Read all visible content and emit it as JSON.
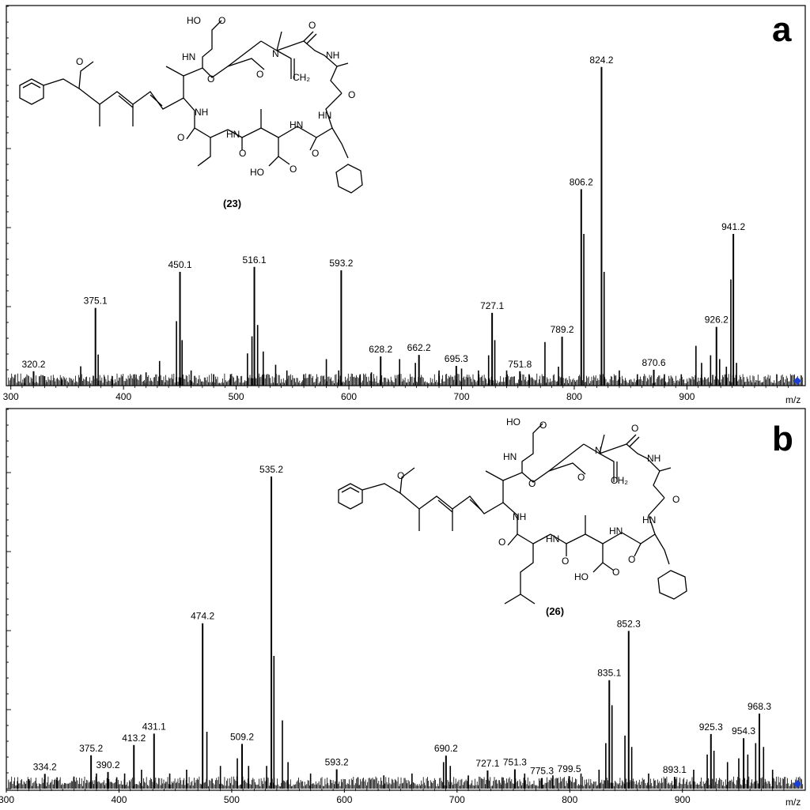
{
  "chart_data": [
    {
      "type": "bar",
      "panel": "a",
      "compound": "(23)",
      "xlabel": "m/z",
      "xlim": [
        296,
        1005
      ],
      "ylim": [
        0,
        100
      ],
      "xticks": [
        300,
        400,
        500,
        600,
        700,
        800,
        900
      ],
      "peaks": [
        {
          "mz": 320.2,
          "rel": 3.8
        },
        {
          "mz": 375.1,
          "rel": 20.5
        },
        {
          "mz": 450.1,
          "rel": 30
        },
        {
          "mz": 516.1,
          "rel": 31.3
        },
        {
          "mz": 593.2,
          "rel": 30.4
        },
        {
          "mz": 628.2,
          "rel": 7.7
        },
        {
          "mz": 662.2,
          "rel": 8.1
        },
        {
          "mz": 695.3,
          "rel": 5.2
        },
        {
          "mz": 727.1,
          "rel": 19.2
        },
        {
          "mz": 751.8,
          "rel": 3.8
        },
        {
          "mz": 789.2,
          "rel": 12.9
        },
        {
          "mz": 806.2,
          "rel": 51.8
        },
        {
          "mz": 824.2,
          "rel": 84
        },
        {
          "mz": 870.6,
          "rel": 4.2
        },
        {
          "mz": 926.2,
          "rel": 15.5
        },
        {
          "mz": 941.2,
          "rel": 40
        }
      ],
      "minor_peaks": [
        {
          "mz": 312,
          "rel": 2
        },
        {
          "mz": 330,
          "rel": 2.5
        },
        {
          "mz": 345,
          "rel": 1.8
        },
        {
          "mz": 362,
          "rel": 5.1
        },
        {
          "mz": 377.5,
          "rel": 8.2
        },
        {
          "mz": 390,
          "rel": 2.5
        },
        {
          "mz": 410,
          "rel": 3
        },
        {
          "mz": 420,
          "rel": 3.5
        },
        {
          "mz": 432,
          "rel": 6.5
        },
        {
          "mz": 447,
          "rel": 17
        },
        {
          "mz": 452,
          "rel": 12
        },
        {
          "mz": 460,
          "rel": 4
        },
        {
          "mz": 480,
          "rel": 3
        },
        {
          "mz": 495,
          "rel": 3
        },
        {
          "mz": 510,
          "rel": 8.5
        },
        {
          "mz": 514,
          "rel": 13
        },
        {
          "mz": 519,
          "rel": 16
        },
        {
          "mz": 524,
          "rel": 9
        },
        {
          "mz": 535,
          "rel": 5.5
        },
        {
          "mz": 545,
          "rel": 4
        },
        {
          "mz": 560,
          "rel": 3
        },
        {
          "mz": 580,
          "rel": 7
        },
        {
          "mz": 591,
          "rel": 4
        },
        {
          "mz": 610,
          "rel": 3
        },
        {
          "mz": 620,
          "rel": 3.5
        },
        {
          "mz": 645,
          "rel": 7
        },
        {
          "mz": 659,
          "rel": 6
        },
        {
          "mz": 680,
          "rel": 4
        },
        {
          "mz": 700,
          "rel": 4.5
        },
        {
          "mz": 715,
          "rel": 4
        },
        {
          "mz": 724,
          "rel": 8
        },
        {
          "mz": 729.5,
          "rel": 12
        },
        {
          "mz": 740,
          "rel": 4
        },
        {
          "mz": 760,
          "rel": 3
        },
        {
          "mz": 774,
          "rel": 11.5
        },
        {
          "mz": 786,
          "rel": 5
        },
        {
          "mz": 808.5,
          "rel": 40
        },
        {
          "mz": 826.5,
          "rel": 30
        },
        {
          "mz": 840,
          "rel": 4
        },
        {
          "mz": 856,
          "rel": 3
        },
        {
          "mz": 880,
          "rel": 3
        },
        {
          "mz": 895,
          "rel": 3
        },
        {
          "mz": 908,
          "rel": 10.5
        },
        {
          "mz": 913,
          "rel": 6
        },
        {
          "mz": 921,
          "rel": 8
        },
        {
          "mz": 929,
          "rel": 7
        },
        {
          "mz": 935,
          "rel": 5
        },
        {
          "mz": 939,
          "rel": 28
        },
        {
          "mz": 944,
          "rel": 6
        }
      ]
    },
    {
      "type": "bar",
      "panel": "b",
      "compound": "(26)",
      "xlabel": "m/z",
      "xlim": [
        300,
        1009
      ],
      "ylim": [
        0,
        100
      ],
      "xticks": [
        300,
        400,
        500,
        600,
        700,
        800,
        900
      ],
      "peaks": [
        {
          "mz": 334.2,
          "rel": 3.9
        },
        {
          "mz": 375.2,
          "rel": 8.8
        },
        {
          "mz": 390.2,
          "rel": 4.4
        },
        {
          "mz": 413.2,
          "rel": 11.5
        },
        {
          "mz": 431.1,
          "rel": 14.5
        },
        {
          "mz": 474.2,
          "rel": 43.6
        },
        {
          "mz": 509.2,
          "rel": 11.8
        },
        {
          "mz": 535.2,
          "rel": 82.3
        },
        {
          "mz": 593.2,
          "rel": 5.1
        },
        {
          "mz": 690.2,
          "rel": 8.7
        },
        {
          "mz": 727.1,
          "rel": 4.8
        },
        {
          "mz": 751.3,
          "rel": 5.1
        },
        {
          "mz": 775.3,
          "rel": 2.8
        },
        {
          "mz": 799.5,
          "rel": 3.3
        },
        {
          "mz": 835.1,
          "rel": 28.6
        },
        {
          "mz": 852.3,
          "rel": 41.6
        },
        {
          "mz": 893.1,
          "rel": 3.1
        },
        {
          "mz": 925.3,
          "rel": 14.4
        },
        {
          "mz": 954.3,
          "rel": 13.3
        },
        {
          "mz": 968.3,
          "rel": 19.8
        }
      ],
      "minor_peaks": [
        {
          "mz": 310,
          "rel": 2
        },
        {
          "mz": 320,
          "rel": 2.5
        },
        {
          "mz": 345,
          "rel": 3
        },
        {
          "mz": 360,
          "rel": 3.2
        },
        {
          "mz": 380,
          "rel": 4
        },
        {
          "mz": 398,
          "rel": 3
        },
        {
          "mz": 405,
          "rel": 4
        },
        {
          "mz": 420,
          "rel": 5
        },
        {
          "mz": 445,
          "rel": 4
        },
        {
          "mz": 460,
          "rel": 5
        },
        {
          "mz": 478,
          "rel": 15
        },
        {
          "mz": 490,
          "rel": 6
        },
        {
          "mz": 505,
          "rel": 8
        },
        {
          "mz": 515,
          "rel": 6
        },
        {
          "mz": 531,
          "rel": 6
        },
        {
          "mz": 537.5,
          "rel": 35
        },
        {
          "mz": 545,
          "rel": 18
        },
        {
          "mz": 550,
          "rel": 7
        },
        {
          "mz": 570,
          "rel": 4
        },
        {
          "mz": 612,
          "rel": 3
        },
        {
          "mz": 635,
          "rel": 3.5
        },
        {
          "mz": 660,
          "rel": 4
        },
        {
          "mz": 688,
          "rel": 7
        },
        {
          "mz": 694,
          "rel": 6
        },
        {
          "mz": 710,
          "rel": 3.5
        },
        {
          "mz": 740,
          "rel": 3
        },
        {
          "mz": 760,
          "rel": 4
        },
        {
          "mz": 785,
          "rel": 3.5
        },
        {
          "mz": 810,
          "rel": 4
        },
        {
          "mz": 826,
          "rel": 5
        },
        {
          "mz": 832,
          "rel": 12
        },
        {
          "mz": 837.5,
          "rel": 22
        },
        {
          "mz": 849,
          "rel": 14
        },
        {
          "mz": 855,
          "rel": 11
        },
        {
          "mz": 870,
          "rel": 4
        },
        {
          "mz": 910,
          "rel": 5
        },
        {
          "mz": 922,
          "rel": 9
        },
        {
          "mz": 928,
          "rel": 10
        },
        {
          "mz": 940,
          "rel": 7
        },
        {
          "mz": 950,
          "rel": 8
        },
        {
          "mz": 958,
          "rel": 9
        },
        {
          "mz": 965,
          "rel": 12
        },
        {
          "mz": 972,
          "rel": 11
        },
        {
          "mz": 980,
          "rel": 5
        }
      ]
    }
  ]
}
